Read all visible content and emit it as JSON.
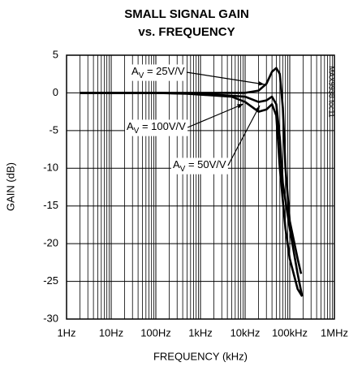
{
  "chart_data": {
    "type": "line",
    "title": "SMALL SIGNAL GAIN",
    "subtitle": "vs. FREQUENCY",
    "x_label": "FREQUENCY (kHz)",
    "y_label": "GAIN (dB)",
    "side_note": "MAX9938 toc11",
    "x_scale": "log",
    "grid": true,
    "minor_grid": true,
    "xlim": [
      1,
      1000000
    ],
    "xticks": [
      {
        "value": 1,
        "label": "1Hz"
      },
      {
        "value": 10,
        "label": "10Hz"
      },
      {
        "value": 100,
        "label": "100Hz"
      },
      {
        "value": 1000,
        "label": "1kHz"
      },
      {
        "value": 10000,
        "label": "10kHz"
      },
      {
        "value": 100000,
        "label": "100kHz"
      },
      {
        "value": 1000000,
        "label": "1MHz"
      }
    ],
    "ylim": [
      -30,
      5
    ],
    "yticks": [
      5,
      0,
      -5,
      -10,
      -15,
      -20,
      -25,
      -30
    ],
    "series": [
      {
        "color": "#000000",
        "x": [
          2,
          100,
          1000,
          10000,
          20000,
          30000,
          40000,
          50000,
          60000,
          70000,
          80000,
          100000,
          150000,
          180000
        ],
        "values": [
          0,
          0,
          0,
          0,
          0.3,
          1.2,
          2.8,
          3.3,
          2.5,
          -2,
          -10,
          -17,
          -22,
          -24
        ]
      },
      {
        "color": "#000000",
        "x": [
          2,
          100,
          1000,
          10000,
          20000,
          30000,
          40000,
          50000,
          60000,
          70000,
          100000,
          150000,
          190000
        ],
        "values": [
          0,
          0,
          -0.1,
          -0.5,
          -1.2,
          -1,
          -0.5,
          -1.5,
          -6,
          -12,
          -18,
          -24,
          -27
        ]
      },
      {
        "color": "#000000",
        "x": [
          2,
          100,
          500,
          5000,
          10000,
          20000,
          30000,
          40000,
          50000,
          60000,
          80000,
          100000,
          150000,
          190000
        ],
        "values": [
          0,
          0,
          -0.1,
          -0.5,
          -1.2,
          -2.5,
          -2.2,
          -1.5,
          -3,
          -10,
          -18,
          -22,
          -26,
          -27
        ]
      }
    ],
    "annotations": [
      {
        "base": "A",
        "sub": "V",
        "rest": " = 25V/V",
        "series": 0
      },
      {
        "base": "A",
        "sub": "V",
        "rest": " = 100V/V",
        "series": 2
      },
      {
        "base": "A",
        "sub": "V",
        "rest": " = 50V/V",
        "series": 1
      }
    ]
  }
}
